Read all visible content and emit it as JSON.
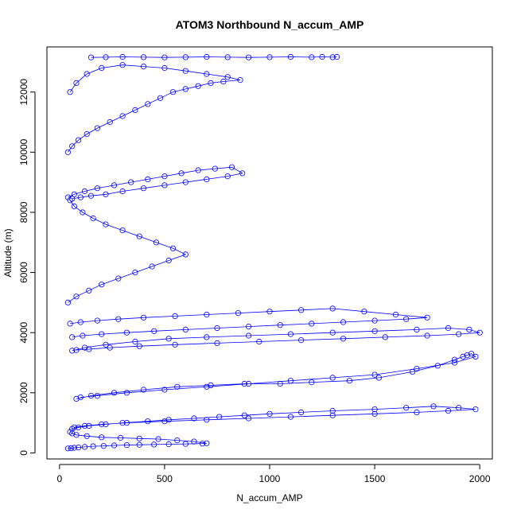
{
  "chart_data": {
    "type": "scatter",
    "title": "ATOM3 Northbound N_accum_AMP",
    "xlabel": "N_accum_AMP",
    "ylabel": "Altitude (m)",
    "xlim": [
      -60,
      2060
    ],
    "ylim": [
      -200,
      13500
    ],
    "xticks": [
      0,
      500,
      1000,
      1500,
      2000
    ],
    "yticks": [
      0,
      2000,
      4000,
      6000,
      8000,
      10000,
      12000
    ],
    "grid": false,
    "legend": "none",
    "marker": "open-circle",
    "connected": true,
    "color": "#0000ff",
    "series": [
      {
        "x": [
          40,
          55,
          70,
          90,
          120,
          160,
          210,
          260,
          320,
          380,
          450,
          520,
          600,
          680,
          700,
          640,
          560,
          470,
          380,
          290,
          200,
          130,
          80,
          60,
          50
        ],
        "y": [
          150,
          160,
          170,
          180,
          200,
          220,
          230,
          250,
          260,
          270,
          280,
          290,
          300,
          310,
          320,
          380,
          420,
          460,
          480,
          500,
          520,
          560,
          600,
          650,
          700
        ]
      },
      {
        "x": [
          60,
          90,
          140,
          220,
          300,
          420,
          520,
          640,
          760,
          880,
          1000,
          1150,
          1300,
          1500,
          1650,
          1780,
          1900,
          1980,
          1850,
          1700,
          1500,
          1300,
          1100,
          900,
          700,
          500,
          320,
          200,
          120,
          70
        ],
        "y": [
          800,
          850,
          900,
          950,
          1000,
          1050,
          1100,
          1150,
          1200,
          1250,
          1300,
          1350,
          1400,
          1450,
          1500,
          1550,
          1500,
          1450,
          1400,
          1350,
          1300,
          1250,
          1200,
          1150,
          1100,
          1050,
          1000,
          950,
          900,
          850
        ]
      },
      {
        "x": [
          80,
          150,
          260,
          400,
          560,
          720,
          880,
          1050,
          1200,
          1380,
          1520,
          1680,
          1800,
          1880,
          1920,
          1940,
          1960,
          1980,
          1880,
          1700,
          1500,
          1300,
          1100,
          900,
          700,
          500,
          320,
          180,
          100
        ],
        "y": [
          1800,
          1900,
          2000,
          2100,
          2200,
          2250,
          2300,
          2300,
          2350,
          2400,
          2500,
          2700,
          2900,
          3100,
          3200,
          3250,
          3300,
          3200,
          3000,
          2800,
          2600,
          2500,
          2400,
          2300,
          2200,
          2100,
          2000,
          1900,
          1850
        ]
      },
      {
        "x": [
          60,
          120,
          220,
          360,
          520,
          700,
          900,
          1100,
          1300,
          1500,
          1700,
          1850,
          1950,
          2000,
          1900,
          1750,
          1550,
          1350,
          1150,
          950,
          750,
          550,
          380,
          240,
          140,
          80
        ],
        "y": [
          3400,
          3500,
          3600,
          3700,
          3800,
          3850,
          3900,
          3950,
          4000,
          4050,
          4100,
          4150,
          4100,
          4000,
          3950,
          3900,
          3850,
          3800,
          3750,
          3700,
          3650,
          3600,
          3550,
          3500,
          3450,
          3420
        ]
      },
      {
        "x": [
          50,
          100,
          180,
          280,
          400,
          550,
          700,
          850,
          1000,
          1150,
          1300,
          1450,
          1600,
          1750,
          1650,
          1500,
          1350,
          1200,
          1050,
          900,
          750,
          600,
          450,
          320,
          200,
          110,
          60
        ],
        "y": [
          4300,
          4350,
          4400,
          4450,
          4500,
          4550,
          4600,
          4650,
          4700,
          4750,
          4800,
          4700,
          4600,
          4500,
          4450,
          4400,
          4350,
          4300,
          4250,
          4200,
          4150,
          4100,
          4050,
          4000,
          3950,
          3900,
          3850
        ]
      },
      {
        "x": [
          40,
          80,
          140,
          200,
          280,
          360,
          440,
          520,
          600,
          540,
          460,
          380,
          300,
          220,
          160,
          110,
          70,
          50
        ],
        "y": [
          5000,
          5200,
          5400,
          5600,
          5800,
          6000,
          6200,
          6400,
          6600,
          6800,
          7000,
          7200,
          7400,
          7600,
          7800,
          8000,
          8200,
          8400
        ]
      },
      {
        "x": [
          40,
          70,
          120,
          180,
          260,
          340,
          420,
          500,
          580,
          660,
          740,
          820,
          870,
          800,
          700,
          600,
          500,
          400,
          300,
          220,
          150,
          100,
          60
        ],
        "y": [
          8500,
          8600,
          8700,
          8800,
          8900,
          9000,
          9100,
          9200,
          9300,
          9400,
          9450,
          9500,
          9300,
          9200,
          9100,
          9000,
          8900,
          8800,
          8700,
          8600,
          8550,
          8500,
          8450
        ]
      },
      {
        "x": [
          40,
          60,
          90,
          130,
          180,
          240,
          300,
          360,
          420,
          480,
          540,
          600,
          660,
          720,
          780,
          860,
          800,
          700,
          600,
          500,
          400,
          300,
          200,
          130,
          80,
          50
        ],
        "y": [
          10000,
          10200,
          10400,
          10600,
          10800,
          11000,
          11200,
          11400,
          11600,
          11800,
          12000,
          12100,
          12200,
          12300,
          12350,
          12400,
          12500,
          12600,
          12700,
          12800,
          12850,
          12900,
          12800,
          12600,
          12300,
          12000
        ]
      },
      {
        "x": [
          150,
          220,
          300,
          400,
          500,
          600,
          700,
          800,
          900,
          1000,
          1100,
          1200,
          1250,
          1300,
          1320
        ],
        "y": [
          13150,
          13160,
          13170,
          13160,
          13150,
          13160,
          13170,
          13160,
          13150,
          13160,
          13170,
          13160,
          13170,
          13160,
          13170
        ]
      }
    ]
  }
}
